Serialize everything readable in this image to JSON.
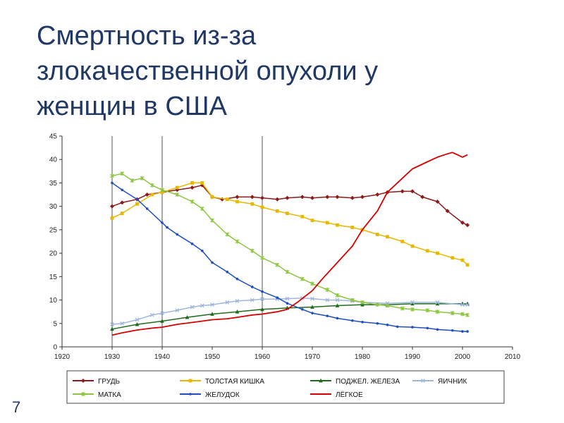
{
  "slide": {
    "title_lines": [
      "Смертность из-за",
      "злокачественной опухоли у",
      "женщин в США"
    ],
    "page_number": "7"
  },
  "colors": {
    "title": "#1f3864",
    "грудь": "#8b1a1a",
    "толстая_кишка": "#e6b800",
    "поджел_железа": "#1e6b1e",
    "яичник": "#9fb6dc",
    "матка": "#8cc63f",
    "желудок": "#1f4fbf",
    "лёгкое": "#d40000"
  },
  "chart_data": {
    "type": "line",
    "xlim": [
      1920,
      2010
    ],
    "ylim": [
      0,
      45
    ],
    "x_ticks": [
      1920,
      1930,
      1940,
      1950,
      1960,
      1970,
      1980,
      1990,
      2000,
      2010
    ],
    "y_ticks": [
      0,
      5,
      10,
      15,
      20,
      25,
      30,
      35,
      40,
      45
    ],
    "vertical_gridlines": [
      1930,
      1940,
      1960
    ],
    "legend_position": "bottom",
    "series": [
      {
        "name": "ГРУДЬ",
        "color": "#8b1a1a",
        "marker": "diamond",
        "x": [
          1930,
          1932,
          1935,
          1937,
          1940,
          1943,
          1946,
          1948,
          1950,
          1952,
          1955,
          1958,
          1960,
          1963,
          1965,
          1968,
          1970,
          1973,
          1975,
          1978,
          1980,
          1983,
          1985,
          1988,
          1990,
          1992,
          1995,
          1997,
          2000,
          2001
        ],
        "y": [
          30,
          30.8,
          31.5,
          32.5,
          33,
          33.5,
          34,
          34.5,
          32,
          31.5,
          32,
          32,
          31.8,
          31.5,
          31.8,
          32,
          31.8,
          32,
          32,
          31.8,
          32,
          32.5,
          33,
          33.2,
          33.2,
          32,
          31,
          29,
          26.5,
          26
        ]
      },
      {
        "name": "ТОЛСТАЯ КИШКА",
        "color": "#e6b800",
        "marker": "square",
        "x": [
          1930,
          1932,
          1935,
          1938,
          1940,
          1943,
          1946,
          1948,
          1950,
          1953,
          1955,
          1958,
          1960,
          1963,
          1965,
          1968,
          1970,
          1973,
          1975,
          1978,
          1980,
          1983,
          1985,
          1988,
          1990,
          1993,
          1995,
          1998,
          2000,
          2001
        ],
        "y": [
          27.5,
          28.5,
          30.5,
          32.5,
          33,
          34,
          35,
          35,
          32,
          31.5,
          31,
          30.5,
          29.8,
          29,
          28.5,
          27.8,
          27,
          26.5,
          26,
          25.5,
          25,
          24,
          23.5,
          22.5,
          21.5,
          20.5,
          20,
          19,
          18.5,
          17.5
        ]
      },
      {
        "name": "ПОДЖЕЛ. ЖЕЛЕЗА",
        "color": "#1e6b1e",
        "marker": "triangle",
        "x": [
          1930,
          1935,
          1940,
          1945,
          1950,
          1955,
          1960,
          1965,
          1970,
          1975,
          1980,
          1985,
          1990,
          1995,
          2000,
          2001
        ],
        "y": [
          3.8,
          4.8,
          5.5,
          6.3,
          7,
          7.5,
          8,
          8.3,
          8.5,
          8.8,
          9,
          9,
          9.2,
          9.2,
          9.2,
          9.2
        ]
      },
      {
        "name": "ЯИЧНИК",
        "color": "#9fb6dc",
        "marker": "x",
        "x": [
          1930,
          1932,
          1935,
          1938,
          1940,
          1943,
          1946,
          1948,
          1950,
          1953,
          1955,
          1958,
          1960,
          1963,
          1965,
          1968,
          1970,
          1973,
          1975,
          1978,
          1980,
          1985,
          1990,
          1995,
          2000,
          2001
        ],
        "y": [
          4.8,
          5,
          5.8,
          6.8,
          7.2,
          7.8,
          8.5,
          8.8,
          9,
          9.5,
          9.8,
          10,
          10.2,
          10.2,
          10.3,
          10.4,
          10.3,
          10,
          10,
          9.8,
          9.5,
          9.3,
          9.5,
          9.5,
          9,
          9
        ]
      },
      {
        "name": "МАТКА",
        "color": "#8cc63f",
        "marker": "star",
        "x": [
          1930,
          1932,
          1934,
          1936,
          1938,
          1940,
          1943,
          1946,
          1948,
          1950,
          1953,
          1955,
          1958,
          1960,
          1963,
          1965,
          1968,
          1970,
          1973,
          1975,
          1978,
          1980,
          1983,
          1985,
          1988,
          1990,
          1993,
          1995,
          1998,
          2000,
          2001
        ],
        "y": [
          36.5,
          37,
          35.5,
          36,
          34.5,
          33.5,
          32.5,
          31,
          29.5,
          27,
          24,
          22.5,
          20.5,
          19,
          17.5,
          16,
          14.5,
          13.5,
          12.2,
          11,
          10,
          9.5,
          9,
          8.8,
          8.2,
          8,
          7.8,
          7.5,
          7.2,
          7,
          6.8
        ]
      },
      {
        "name": "ЖЕЛУДОК",
        "color": "#1f4fbf",
        "marker": "dot",
        "x": [
          1930,
          1932,
          1935,
          1937,
          1940,
          1941,
          1943,
          1946,
          1948,
          1950,
          1953,
          1955,
          1958,
          1960,
          1963,
          1965,
          1968,
          1970,
          1973,
          1975,
          1978,
          1980,
          1983,
          1985,
          1987,
          1990,
          1993,
          1995,
          1998,
          2000,
          2001
        ],
        "y": [
          35,
          33.5,
          31.5,
          29.5,
          26.5,
          25.5,
          24,
          22,
          20.5,
          18,
          16,
          14.5,
          12.8,
          11.8,
          10.5,
          9.3,
          8,
          7.2,
          6.6,
          6.1,
          5.6,
          5.3,
          5,
          4.7,
          4.3,
          4.2,
          4,
          3.7,
          3.5,
          3.3,
          3.3
        ]
      },
      {
        "name": "ЛЁГКОЕ",
        "color": "#d40000",
        "marker": "none",
        "x": [
          1930,
          1932,
          1935,
          1938,
          1940,
          1943,
          1946,
          1948,
          1950,
          1953,
          1955,
          1958,
          1960,
          1963,
          1965,
          1967,
          1970,
          1972,
          1975,
          1978,
          1980,
          1983,
          1985,
          1988,
          1990,
          1993,
          1995,
          1997,
          1998,
          1999,
          2000,
          2001
        ],
        "y": [
          2.5,
          3,
          3.6,
          4,
          4.2,
          4.8,
          5.2,
          5.5,
          5.8,
          6,
          6.3,
          6.8,
          7,
          7.5,
          8,
          9.5,
          12,
          14.5,
          18,
          21.5,
          25,
          29,
          33,
          36,
          38,
          39.5,
          40.5,
          41.2,
          41.5,
          41,
          40.5,
          41
        ]
      }
    ]
  }
}
